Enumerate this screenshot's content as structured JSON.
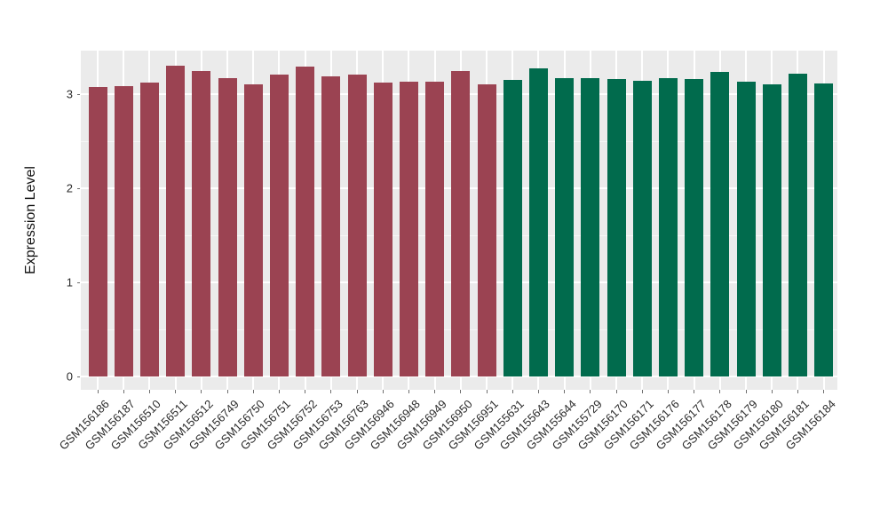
{
  "chart_data": {
    "type": "bar",
    "title": "",
    "xlabel": "",
    "ylabel": "Expression Level",
    "ylim": [
      0,
      3.46
    ],
    "yticks": [
      0,
      1,
      2,
      3
    ],
    "yticks_minor": [
      0.5,
      1.5,
      2.5
    ],
    "grid": true,
    "legend": "none",
    "group_colors": {
      "group1": "#9B4352",
      "group2": "#016B4D"
    },
    "bars": [
      {
        "label": "GSM156186",
        "value": 3.08,
        "group": "group1"
      },
      {
        "label": "GSM156187",
        "value": 3.09,
        "group": "group1"
      },
      {
        "label": "GSM156510",
        "value": 3.12,
        "group": "group1"
      },
      {
        "label": "GSM156511",
        "value": 3.3,
        "group": "group1"
      },
      {
        "label": "GSM156512",
        "value": 3.25,
        "group": "group1"
      },
      {
        "label": "GSM156749",
        "value": 3.17,
        "group": "group1"
      },
      {
        "label": "GSM156750",
        "value": 3.1,
        "group": "group1"
      },
      {
        "label": "GSM156751",
        "value": 3.21,
        "group": "group1"
      },
      {
        "label": "GSM156752",
        "value": 3.29,
        "group": "group1"
      },
      {
        "label": "GSM156753",
        "value": 3.19,
        "group": "group1"
      },
      {
        "label": "GSM156763",
        "value": 3.21,
        "group": "group1"
      },
      {
        "label": "GSM156946",
        "value": 3.12,
        "group": "group1"
      },
      {
        "label": "GSM156948",
        "value": 3.13,
        "group": "group1"
      },
      {
        "label": "GSM156949",
        "value": 3.13,
        "group": "group1"
      },
      {
        "label": "GSM156950",
        "value": 3.25,
        "group": "group1"
      },
      {
        "label": "GSM156951",
        "value": 3.1,
        "group": "group1"
      },
      {
        "label": "GSM155631",
        "value": 3.15,
        "group": "group2"
      },
      {
        "label": "GSM155643",
        "value": 3.27,
        "group": "group2"
      },
      {
        "label": "GSM155644",
        "value": 3.17,
        "group": "group2"
      },
      {
        "label": "GSM155729",
        "value": 3.17,
        "group": "group2"
      },
      {
        "label": "GSM156170",
        "value": 3.16,
        "group": "group2"
      },
      {
        "label": "GSM156171",
        "value": 3.14,
        "group": "group2"
      },
      {
        "label": "GSM156176",
        "value": 3.17,
        "group": "group2"
      },
      {
        "label": "GSM156177",
        "value": 3.16,
        "group": "group2"
      },
      {
        "label": "GSM156178",
        "value": 3.24,
        "group": "group2"
      },
      {
        "label": "GSM156179",
        "value": 3.13,
        "group": "group2"
      },
      {
        "label": "GSM156180",
        "value": 3.1,
        "group": "group2"
      },
      {
        "label": "GSM156181",
        "value": 3.22,
        "group": "group2"
      },
      {
        "label": "GSM156184",
        "value": 3.11,
        "group": "group2"
      }
    ]
  },
  "style": {
    "panel_bg": "#EBEBEB",
    "grid_color": "#FFFFFF",
    "axis_text_color": "#2B2B2B",
    "axis_title_color": "#111111",
    "tick_mark_color": "#6E6E6E"
  }
}
